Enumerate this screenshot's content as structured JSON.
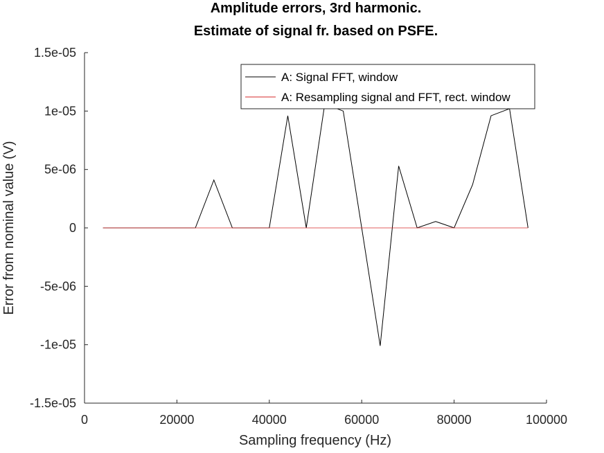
{
  "chart_data": {
    "type": "line",
    "title": [
      "Amplitude errors, 3rd harmonic.",
      "Estimate of signal fr. based on PSFE."
    ],
    "xlabel": "Sampling frequency (Hz)",
    "ylabel": "Error from nominal value (V)",
    "xlim": [
      0,
      100000
    ],
    "ylim": [
      -1.5e-05,
      1.5e-05
    ],
    "xticks": [
      0,
      20000,
      40000,
      60000,
      80000,
      100000
    ],
    "xtick_labels": [
      "0",
      "20000",
      "40000",
      "60000",
      "80000",
      "100000"
    ],
    "yticks": [
      -1.5e-05,
      -1e-05,
      -5e-06,
      0,
      5e-06,
      1e-05,
      1.5e-05
    ],
    "ytick_labels": [
      "-1.5e-05",
      "-1e-05",
      "-5e-06",
      "0",
      "5e-06",
      "1e-05",
      "1.5e-05"
    ],
    "grid": false,
    "legend_position": "top-right",
    "x": [
      4000,
      8000,
      12000,
      16000,
      20000,
      24000,
      28000,
      32000,
      36000,
      40000,
      44000,
      48000,
      52000,
      56000,
      60000,
      64000,
      68000,
      72000,
      76000,
      80000,
      84000,
      88000,
      92000,
      96000
    ],
    "series": [
      {
        "name": "A: Signal FFT, window",
        "color": "#000000",
        "values": [
          0,
          0,
          0,
          0,
          0,
          0,
          4.1e-06,
          0,
          0,
          0,
          9.6e-06,
          0,
          1.06e-05,
          1e-05,
          0,
          -1.01e-05,
          5.3e-06,
          0,
          5.5e-07,
          0,
          3.7e-06,
          9.6e-06,
          1.02e-05,
          0
        ]
      },
      {
        "name": "A: Resampling signal and FFT, rect. window",
        "color": "#d62728",
        "values": [
          0,
          0,
          0,
          0,
          0,
          0,
          0,
          0,
          0,
          0,
          0,
          0,
          0,
          0,
          0,
          0,
          0,
          0,
          0,
          0,
          0,
          0,
          0,
          0
        ]
      }
    ]
  }
}
